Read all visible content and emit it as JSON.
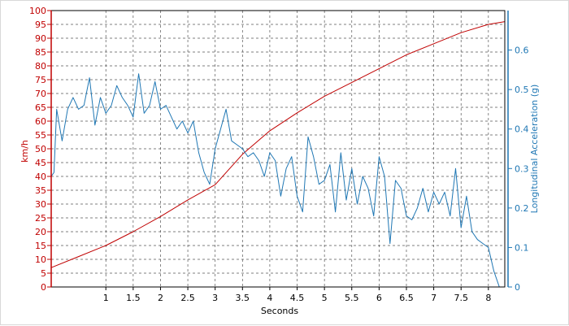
{
  "chart_data": {
    "type": "line",
    "xlabel": "Seconds",
    "ylabel_left": "km/h",
    "ylabel_right": "Longitudinal Acceleration (g)",
    "xlim": [
      0,
      8.3
    ],
    "ylim_left": [
      0,
      100
    ],
    "ylim_right": [
      0,
      0.7
    ],
    "x_ticks": [
      {
        "value": 1,
        "label": "1"
      },
      {
        "value": 1.5,
        "label": "1.5"
      },
      {
        "value": 2,
        "label": "2"
      },
      {
        "value": 2.5,
        "label": "2.5"
      },
      {
        "value": 3,
        "label": "3"
      },
      {
        "value": 3.5,
        "label": "3.5"
      },
      {
        "value": 4,
        "label": "4"
      },
      {
        "value": 4.5,
        "label": "4.5"
      },
      {
        "value": 5,
        "label": "5"
      },
      {
        "value": 5.5,
        "label": "5.5"
      },
      {
        "value": 6,
        "label": "6"
      },
      {
        "value": 6.5,
        "label": "6.5"
      },
      {
        "value": 7,
        "label": "7"
      },
      {
        "value": 7.5,
        "label": "7.5"
      },
      {
        "value": 8,
        "label": "8"
      }
    ],
    "y_left_ticks": [
      0,
      5,
      10,
      15,
      20,
      25,
      30,
      35,
      40,
      45,
      50,
      55,
      60,
      65,
      70,
      75,
      80,
      85,
      90,
      95,
      100
    ],
    "y_right_ticks": [
      {
        "value": 0,
        "label": "0"
      },
      {
        "value": 0.1,
        "label": "0.1"
      },
      {
        "value": 0.2,
        "label": "0.2"
      },
      {
        "value": 0.3,
        "label": "0.3"
      },
      {
        "value": 0.4,
        "label": "0.4"
      },
      {
        "value": 0.5,
        "label": "0.5"
      },
      {
        "value": 0.6,
        "label": "0.6"
      }
    ],
    "grid": true,
    "colors": {
      "speed": "#c00000",
      "accel": "#1f77b4",
      "grid": "#555555",
      "frame": "#000000"
    },
    "series": [
      {
        "id": "speed",
        "axis": "left",
        "x": [
          0,
          0.5,
          1,
          1.5,
          2,
          2.5,
          3,
          3.5,
          4,
          4.5,
          5,
          5.5,
          6,
          6.5,
          7,
          7.5,
          8,
          8.3
        ],
        "values": [
          7,
          11,
          15,
          20,
          25.5,
          31.5,
          37,
          48,
          56.5,
          63,
          69,
          74,
          79,
          84,
          88,
          92,
          95,
          96
        ]
      },
      {
        "id": "accel",
        "axis": "right",
        "x": [
          0,
          0.05,
          0.1,
          0.2,
          0.3,
          0.4,
          0.5,
          0.6,
          0.7,
          0.8,
          0.9,
          1.0,
          1.1,
          1.2,
          1.3,
          1.4,
          1.5,
          1.6,
          1.7,
          1.8,
          1.9,
          2.0,
          2.1,
          2.2,
          2.3,
          2.4,
          2.5,
          2.6,
          2.7,
          2.8,
          2.9,
          3.0,
          3.1,
          3.2,
          3.3,
          3.4,
          3.5,
          3.6,
          3.7,
          3.8,
          3.9,
          4.0,
          4.1,
          4.2,
          4.3,
          4.4,
          4.5,
          4.6,
          4.7,
          4.8,
          4.9,
          5.0,
          5.1,
          5.2,
          5.3,
          5.4,
          5.5,
          5.6,
          5.7,
          5.8,
          5.9,
          6.0,
          6.1,
          6.2,
          6.3,
          6.4,
          6.5,
          6.6,
          6.7,
          6.8,
          6.9,
          7.0,
          7.1,
          7.2,
          7.3,
          7.4,
          7.5,
          7.6,
          7.7,
          7.8,
          7.9,
          8.0,
          8.1,
          8.2,
          8.25
        ],
        "values": [
          0.28,
          0.29,
          0.45,
          0.37,
          0.45,
          0.48,
          0.45,
          0.46,
          0.53,
          0.41,
          0.48,
          0.44,
          0.46,
          0.51,
          0.48,
          0.46,
          0.43,
          0.54,
          0.44,
          0.46,
          0.52,
          0.45,
          0.46,
          0.43,
          0.4,
          0.42,
          0.39,
          0.42,
          0.34,
          0.29,
          0.26,
          0.35,
          0.4,
          0.45,
          0.37,
          0.36,
          0.35,
          0.33,
          0.34,
          0.32,
          0.28,
          0.34,
          0.32,
          0.23,
          0.3,
          0.33,
          0.23,
          0.19,
          0.38,
          0.33,
          0.26,
          0.27,
          0.31,
          0.19,
          0.34,
          0.22,
          0.3,
          0.21,
          0.28,
          0.25,
          0.18,
          0.33,
          0.28,
          0.11,
          0.27,
          0.25,
          0.18,
          0.17,
          0.2,
          0.25,
          0.19,
          0.24,
          0.21,
          0.24,
          0.18,
          0.3,
          0.15,
          0.23,
          0.14,
          0.12,
          0.11,
          0.1,
          0.04,
          0.0,
          0.0
        ]
      }
    ]
  }
}
